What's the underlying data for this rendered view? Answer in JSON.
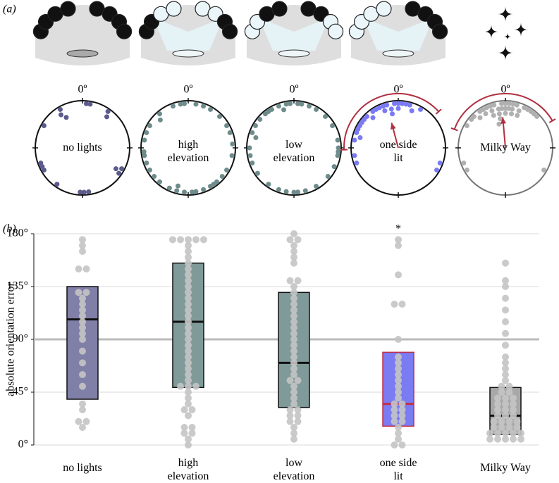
{
  "chart_data": [
    {
      "type": "polar",
      "panel_label": "(a)",
      "zero_label": "0º",
      "panels": [
        {
          "name": "no lights",
          "color": "#5b5b8c",
          "angles": [
            330,
            327,
            332,
            5,
            10,
            35,
            38,
            118,
            122,
            125,
            172,
            178,
            183,
            215,
            240,
            245,
            250,
            300
          ]
        },
        {
          "name": "high\nelevation",
          "color": "#6e8c8b",
          "angles": [
            355,
            350,
            340,
            320,
            315,
            300,
            280,
            265,
            260,
            240,
            230,
            220,
            205,
            195,
            170,
            160,
            150,
            140,
            130,
            120,
            100,
            85,
            70,
            60,
            45,
            30,
            20,
            10,
            175,
            185,
            195,
            145,
            250,
            290
          ]
        },
        {
          "name": "low\nelevation",
          "color": "#6e8c8b",
          "angles": [
            350,
            340,
            330,
            320,
            310,
            300,
            290,
            285,
            270,
            260,
            250,
            235,
            215,
            200,
            190,
            180,
            175,
            165,
            150,
            130,
            115,
            100,
            95,
            90,
            80,
            60,
            45,
            30,
            20,
            10,
            5,
            355,
            345,
            325
          ]
        },
        {
          "name": "one side\nlit",
          "color": "#7a7af5",
          "angles": [
            280,
            290,
            300,
            305,
            310,
            315,
            320,
            325,
            330,
            335,
            340,
            345,
            350,
            355,
            0,
            5,
            10,
            15,
            20,
            30,
            285,
            295,
            110,
            120,
            250,
            260,
            340,
            350,
            0
          ],
          "mean_angle": -15,
          "mean_length": 0.55,
          "ci": [
            -92,
            48
          ]
        },
        {
          "name": "Milky Way",
          "color": "#b0b0b0",
          "angles": [
            300,
            310,
            315,
            320,
            325,
            330,
            335,
            340,
            345,
            350,
            355,
            0,
            5,
            10,
            15,
            20,
            25,
            30,
            35,
            40,
            45,
            330,
            340,
            350,
            0,
            10,
            20,
            340,
            350,
            0,
            10,
            345,
            355,
            5,
            240,
            250,
            120
          ],
          "mean_angle": -5,
          "mean_length": 0.65,
          "ci": [
            -70,
            60
          ]
        }
      ]
    },
    {
      "type": "box",
      "panel_label": "(b)",
      "ylabel": "absolute orientation error",
      "ylim": [
        0,
        180
      ],
      "yticks": [
        {
          "value": 0,
          "label": "0°"
        },
        {
          "value": 45,
          "label": "45°"
        },
        {
          "value": 90,
          "label": "90°"
        },
        {
          "value": 135,
          "label": "135°"
        },
        {
          "value": 180,
          "label": "180°"
        }
      ],
      "reference_line": 90,
      "categories": [
        "no lights",
        "high\nelevation",
        "low\nelevation",
        "one side\nlit",
        "Milky Way"
      ],
      "series": [
        {
          "color": "#7f7fa8",
          "edge": "#111111",
          "q1": 39,
          "median": 107,
          "q3": 135,
          "points": [
            175,
            170,
            165,
            150,
            150,
            130,
            130,
            125,
            120,
            115,
            110,
            105,
            100,
            95,
            90,
            80,
            70,
            60,
            50,
            35,
            30,
            20,
            20,
            15
          ]
        },
        {
          "color": "#7f9a99",
          "edge": "#111111",
          "q1": 49,
          "median": 105,
          "q3": 155,
          "points": [
            175,
            175,
            175,
            175,
            175,
            170,
            165,
            160,
            155,
            150,
            145,
            140,
            135,
            130,
            125,
            120,
            115,
            110,
            105,
            100,
            95,
            90,
            85,
            80,
            75,
            70,
            65,
            60,
            55,
            50,
            50,
            50,
            45,
            40,
            35,
            30,
            30,
            25,
            15,
            15,
            10,
            10,
            5,
            0
          ]
        },
        {
          "color": "#7f9a99",
          "edge": "#111111",
          "q1": 32,
          "median": 70,
          "q3": 130,
          "points": [
            180,
            175,
            175,
            170,
            165,
            160,
            155,
            140,
            140,
            135,
            130,
            125,
            120,
            115,
            110,
            105,
            100,
            95,
            90,
            85,
            80,
            75,
            70,
            65,
            60,
            55,
            55,
            50,
            45,
            40,
            35,
            30,
            30,
            25,
            25,
            20,
            20,
            15,
            10,
            5
          ]
        },
        {
          "color": "#7b7bf2",
          "edge": "#c0304a",
          "q1": 16,
          "median": 35,
          "q3": 79,
          "annotation": "*",
          "points": [
            175,
            170,
            145,
            120,
            120,
            90,
            75,
            70,
            65,
            60,
            55,
            50,
            45,
            40,
            35,
            35,
            30,
            30,
            25,
            25,
            20,
            20,
            15,
            10,
            5,
            0,
            0
          ]
        },
        {
          "color": "#a8a8a8",
          "edge": "#111111",
          "q1": 9,
          "median": 25,
          "q3": 49,
          "points": [
            155,
            140,
            135,
            125,
            115,
            105,
            95,
            85,
            75,
            70,
            65,
            60,
            55,
            50,
            50,
            45,
            45,
            40,
            40,
            40,
            35,
            35,
            35,
            30,
            30,
            30,
            25,
            25,
            25,
            20,
            20,
            20,
            20,
            15,
            15,
            15,
            15,
            10,
            10,
            10,
            10,
            10,
            5,
            5,
            5,
            5,
            5
          ]
        }
      ]
    }
  ]
}
